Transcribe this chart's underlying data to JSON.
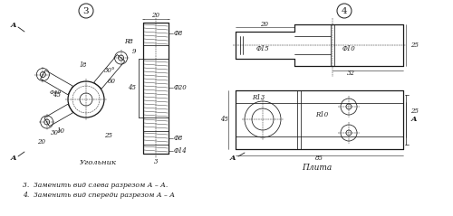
{
  "bg_color": "#ffffff",
  "line_color": "#1a1a1a",
  "title3": "3",
  "title4": "4",
  "label_ugolnik": "Угольник",
  "label_plita": "Плита",
  "note3": "3.  Заменить вид слева разрезом А – А.",
  "note4": "4.  Заменить вид спереди разрезом А – А",
  "font_size_dim": 5.0,
  "font_size_label": 6.5
}
